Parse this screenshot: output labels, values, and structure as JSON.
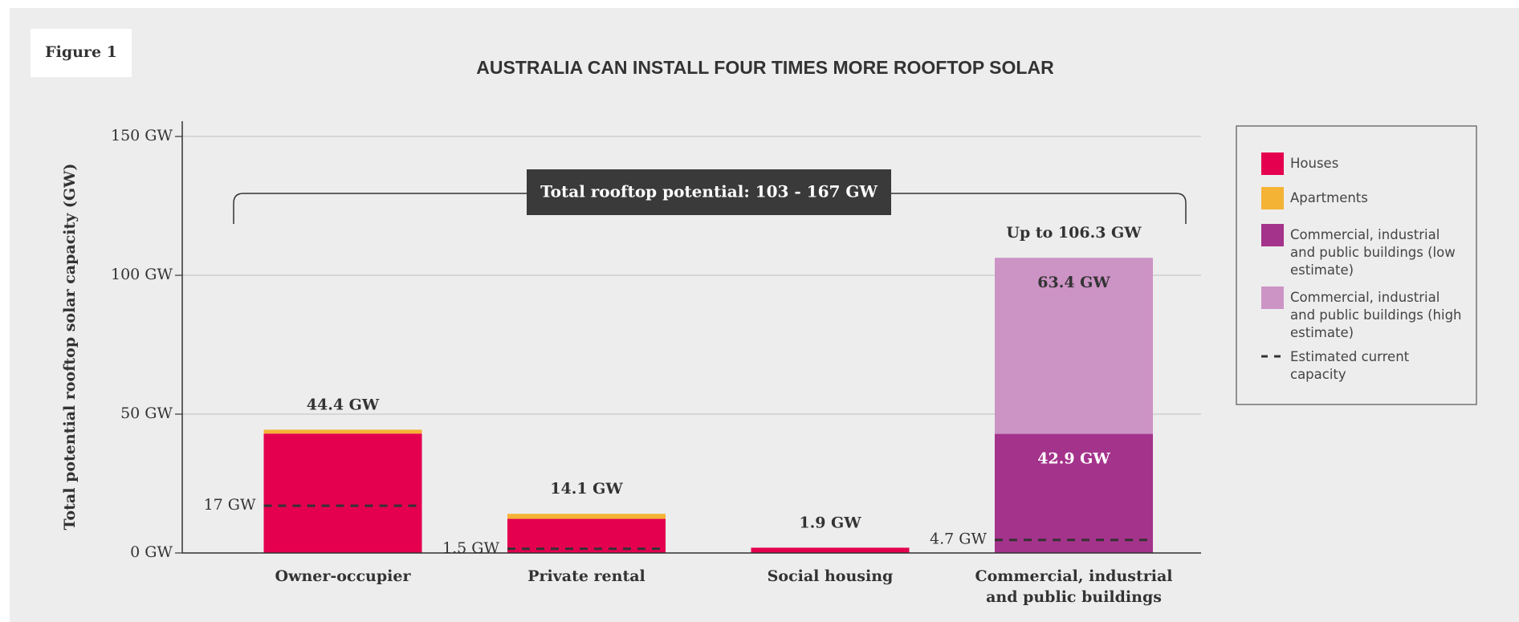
{
  "chart_data": {
    "type": "bar",
    "stacked": true,
    "figure_label": "Figure 1",
    "title": "AUSTRALIA CAN INSTALL FOUR TIMES MORE ROOFTOP SOLAR",
    "y_label": "Total potential rooftop solar capacity (GW)",
    "annotation": "Total rooftop potential: 103 - 167 GW",
    "categories": [
      "Owner-occupier",
      "Private rental",
      "Social housing",
      "Commercial, industrial and public buildings"
    ],
    "series": [
      {
        "name": "Houses",
        "color": "#e4004f",
        "values": [
          43.0,
          12.3,
          1.9,
          null
        ]
      },
      {
        "name": "Apartments",
        "color": "#f5b335",
        "values": [
          1.4,
          1.8,
          null,
          null
        ]
      },
      {
        "name": "Commercial, industrial and public buildings (low estimate)",
        "color": "#a4338b",
        "values": [
          null,
          null,
          null,
          42.9
        ],
        "value_labels": [
          null,
          null,
          null,
          "42.9 GW"
        ],
        "label_color": "#ffffff"
      },
      {
        "name": "Commercial, industrial and public buildings (high estimate)",
        "color": "#cc93c5",
        "values": [
          null,
          null,
          null,
          63.4
        ],
        "value_labels": [
          null,
          null,
          null,
          "63.4 GW"
        ],
        "label_color": "#333333"
      }
    ],
    "current_capacity": {
      "name": "Estimated current capacity",
      "color": "#333333",
      "values": [
        17,
        1.5,
        null,
        4.7
      ],
      "value_labels": [
        "17 GW",
        "1.5 GW",
        null,
        "4.7 GW"
      ]
    },
    "totals": [
      44.4,
      14.1,
      1.9,
      106.3
    ],
    "total_labels": [
      "44.4 GW",
      "14.1 GW",
      "1.9 GW",
      "Up to 106.3 GW"
    ],
    "ylim": [
      0,
      155.5
    ],
    "yticks": [
      {
        "value": 0,
        "label": "0 GW"
      },
      {
        "value": 50,
        "label": "50 GW"
      },
      {
        "value": 100,
        "label": "100 GW"
      },
      {
        "value": 150,
        "label": "150 GW"
      }
    ],
    "grid": true,
    "legend": "right"
  }
}
